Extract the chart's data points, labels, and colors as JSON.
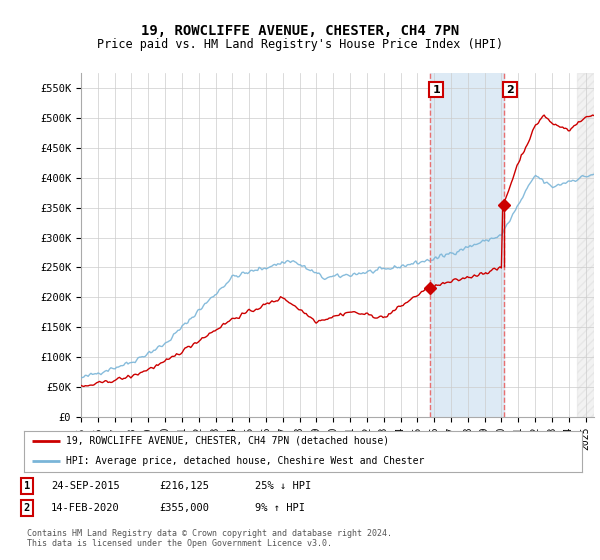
{
  "title": "19, ROWCLIFFE AVENUE, CHESTER, CH4 7PN",
  "subtitle": "Price paid vs. HM Land Registry's House Price Index (HPI)",
  "title_fontsize": 10,
  "subtitle_fontsize": 8.5,
  "ylim": [
    0,
    575000
  ],
  "yticks": [
    0,
    50000,
    100000,
    150000,
    200000,
    250000,
    300000,
    350000,
    400000,
    450000,
    500000,
    550000
  ],
  "ytick_labels": [
    "£0",
    "£50K",
    "£100K",
    "£150K",
    "£200K",
    "£250K",
    "£300K",
    "£350K",
    "£400K",
    "£450K",
    "£500K",
    "£550K"
  ],
  "xlim_start": 1995.0,
  "xlim_end": 2025.5,
  "xtick_years": [
    1995,
    1996,
    1997,
    1998,
    1999,
    2000,
    2001,
    2002,
    2003,
    2004,
    2005,
    2006,
    2007,
    2008,
    2009,
    2010,
    2011,
    2012,
    2013,
    2014,
    2015,
    2016,
    2017,
    2018,
    2019,
    2020,
    2021,
    2022,
    2023,
    2024,
    2025
  ],
  "hpi_color": "#7ab5d8",
  "price_color": "#cc0000",
  "vline_color": "#e87070",
  "vline1_x": 2015.73,
  "vline2_x": 2020.12,
  "marker1_x": 2015.73,
  "marker1_y": 216125,
  "marker2_x": 2020.12,
  "marker2_y": 355000,
  "annotation1_label": "1",
  "annotation2_label": "2",
  "shaded_color": "#ddeaf5",
  "legend_line1": "19, ROWCLIFFE AVENUE, CHESTER, CH4 7PN (detached house)",
  "legend_line2": "HPI: Average price, detached house, Cheshire West and Chester",
  "table_row1": [
    "1",
    "24-SEP-2015",
    "£216,125",
    "25% ↓ HPI"
  ],
  "table_row2": [
    "2",
    "14-FEB-2020",
    "£355,000",
    "9% ↑ HPI"
  ],
  "footnote": "Contains HM Land Registry data © Crown copyright and database right 2024.\nThis data is licensed under the Open Government Licence v3.0.",
  "bg_color": "#ffffff",
  "grid_color": "#cccccc"
}
